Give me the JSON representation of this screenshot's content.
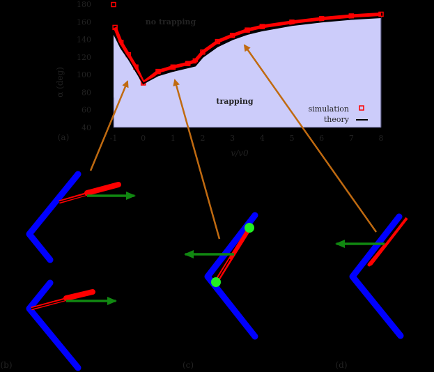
{
  "figure": {
    "panel_labels": [
      "(a)",
      "(b)",
      "(c)",
      "(d)"
    ],
    "region_labels": {
      "upper": "no trapping",
      "lower": "trapping"
    }
  },
  "colors": {
    "background": "#000000",
    "trapping_fill": "#ccccfa",
    "simulation": "#ff0000",
    "theory": "#000000",
    "arrow": "#c06a10",
    "wall": "#0000ff",
    "velocity_arrow": "#118811",
    "contact_marker": "#22ee22"
  },
  "chart_data": {
    "type": "area",
    "title": "",
    "xlabel": "v/v0",
    "ylabel": "α (deg)",
    "xlim": [
      -1,
      8
    ],
    "ylim": [
      40,
      180
    ],
    "xticks": [
      -1,
      0,
      1,
      2,
      3,
      4,
      5,
      6,
      7,
      8
    ],
    "yticks": [
      40,
      60,
      80,
      100,
      120,
      140,
      160,
      180
    ],
    "grid": false,
    "legend": {
      "position": "lower right",
      "entries": [
        "simulation",
        "theory"
      ]
    },
    "annotations": [
      "no trapping",
      "trapping"
    ],
    "series": [
      {
        "name": "theory",
        "style": "line",
        "x": [
          -1,
          -0.75,
          -0.5,
          -0.25,
          0,
          0.5,
          1,
          1.5,
          1.75,
          2,
          2.5,
          3,
          3.5,
          4,
          5,
          6,
          7,
          8
        ],
        "values": [
          147,
          130,
          118,
          104,
          90,
          99,
          104,
          108,
          110,
          120,
          132,
          140,
          146,
          150,
          156,
          160,
          163,
          165
        ]
      },
      {
        "name": "simulation",
        "style": "scatter",
        "x": [
          -1,
          -0.95,
          -0.75,
          -0.5,
          -0.25,
          0,
          0.5,
          1,
          1.5,
          1.75,
          2,
          2.5,
          3,
          3.5,
          4,
          5,
          6,
          7,
          8
        ],
        "values": [
          178,
          152,
          135,
          121,
          107,
          89,
          102,
          107,
          111,
          114,
          124,
          136,
          143,
          149,
          153,
          158,
          162,
          165,
          167
        ]
      }
    ]
  },
  "arrows": [
    {
      "from": [
        130,
        245
      ],
      "to": [
        183,
        117
      ]
    },
    {
      "from": [
        315,
        343
      ],
      "to": [
        251,
        115
      ]
    },
    {
      "from": [
        540,
        333
      ],
      "to": [
        351,
        65
      ]
    }
  ]
}
